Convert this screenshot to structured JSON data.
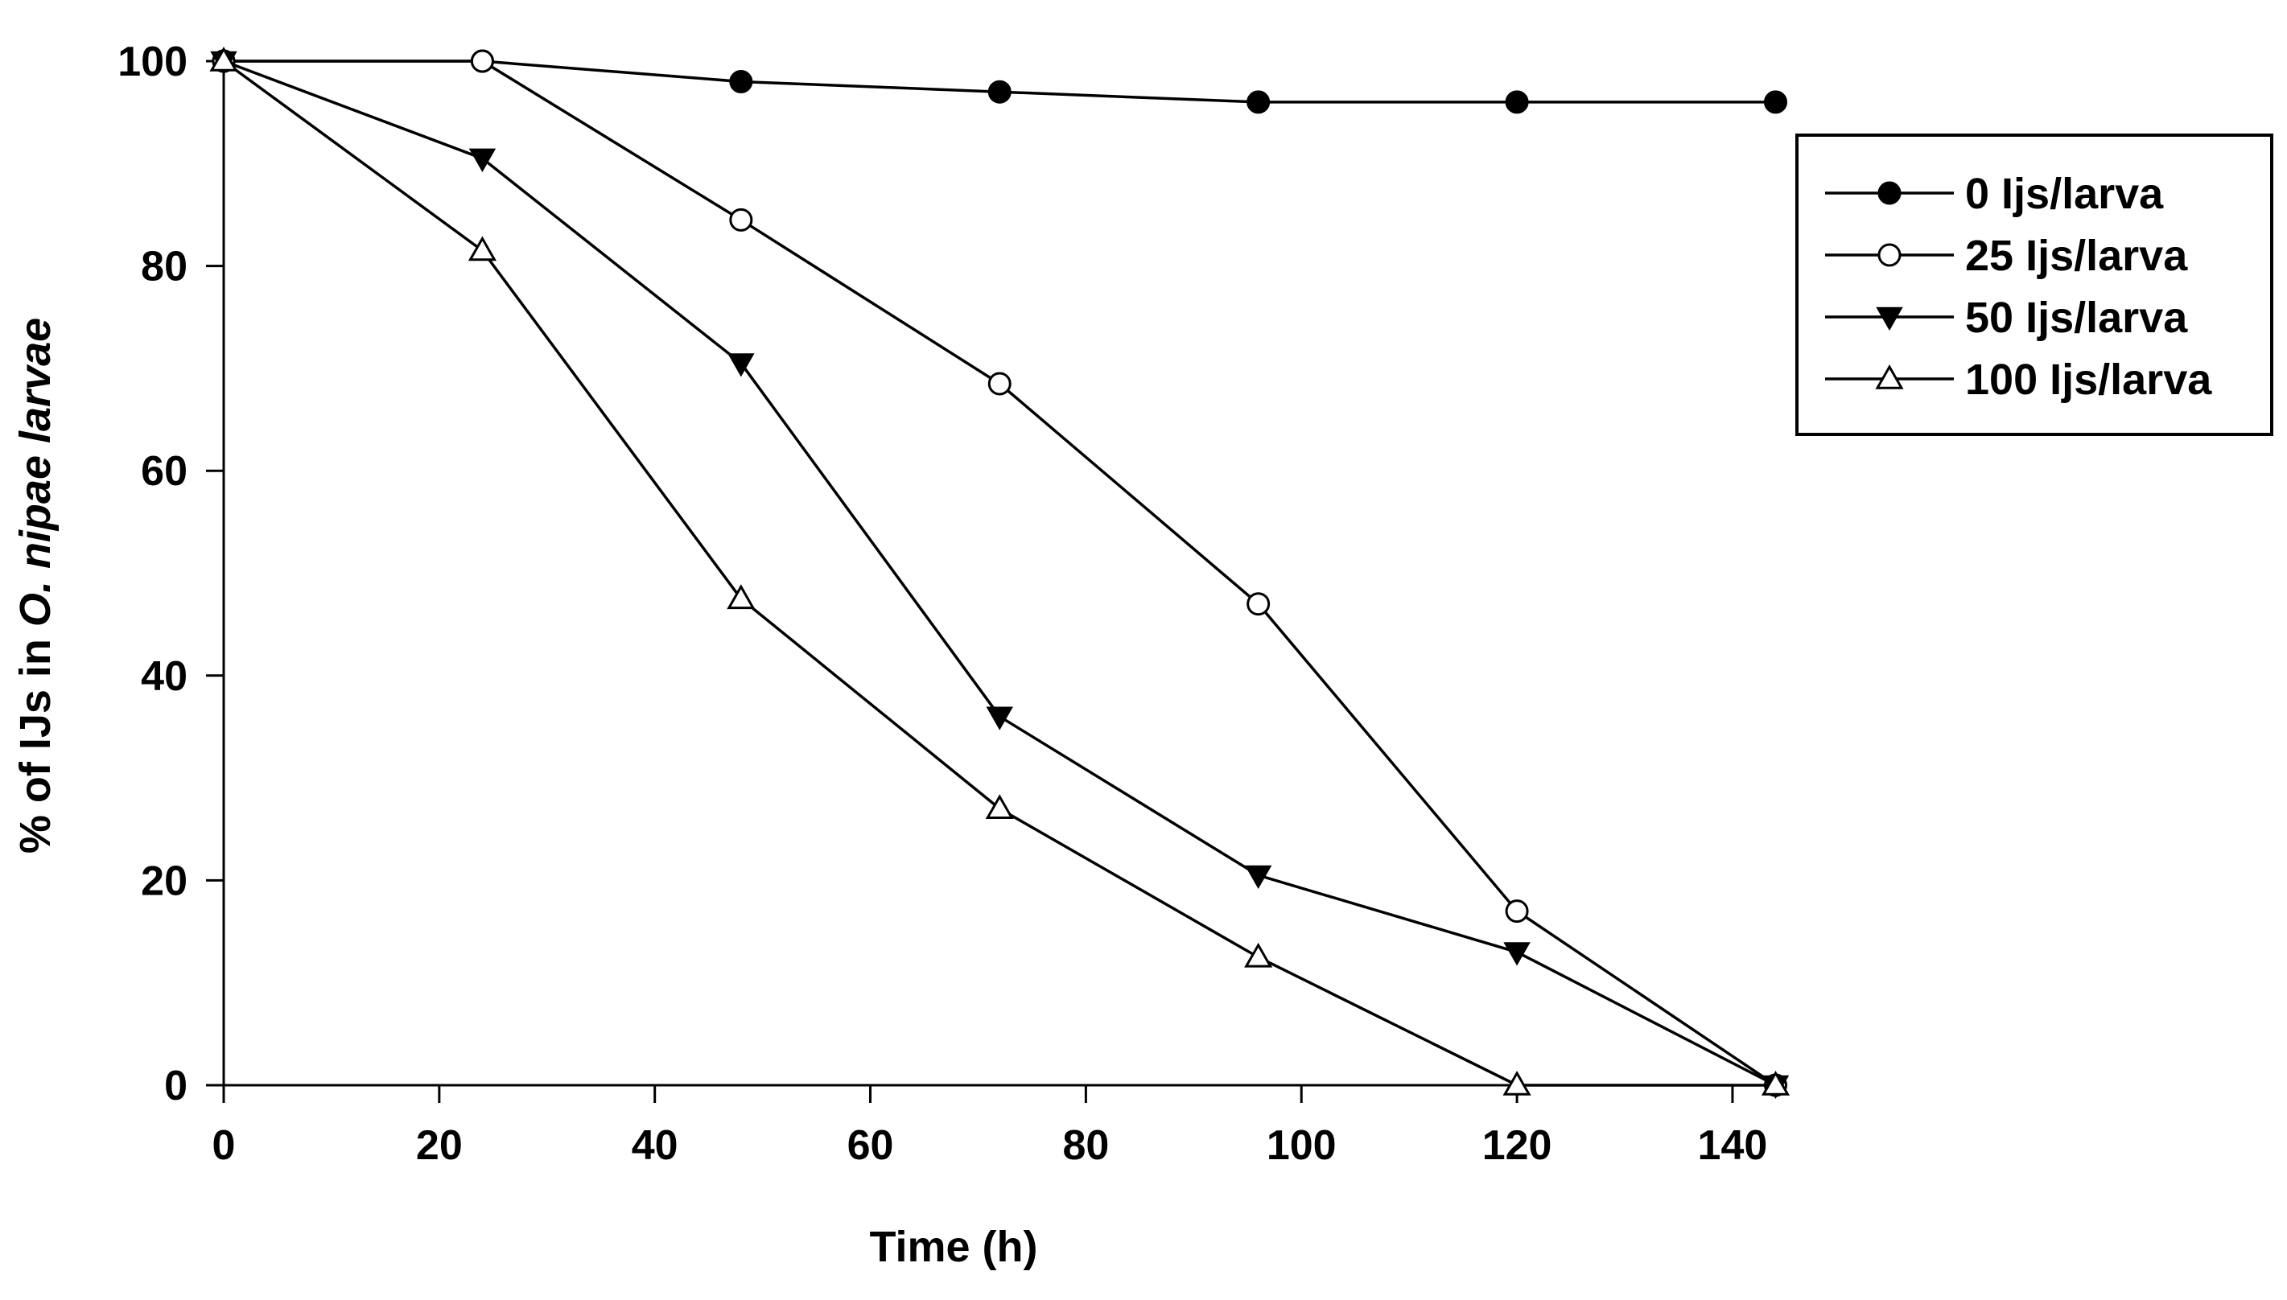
{
  "chart_data": {
    "type": "line",
    "title": "",
    "xlabel": "Time (h)",
    "ylabel_prefix": "% of IJs in ",
    "ylabel_italic": "O. nipae larvae",
    "xlim": [
      0,
      150
    ],
    "ylim": [
      0,
      100
    ],
    "x_ticks": [
      0,
      20,
      40,
      60,
      80,
      100,
      120,
      140
    ],
    "y_ticks": [
      0,
      20,
      40,
      60,
      80,
      100
    ],
    "grid": false,
    "legend_position": "top-right",
    "x": [
      0,
      24,
      48,
      72,
      96,
      120,
      144
    ],
    "series": [
      {
        "name": "0 Ijs/larva",
        "marker": "circle-filled",
        "values": [
          100,
          100,
          98,
          97,
          96,
          96,
          96
        ]
      },
      {
        "name": "25 Ijs/larva",
        "marker": "circle-open",
        "values": [
          100,
          100,
          84.5,
          68.5,
          47,
          17,
          0
        ]
      },
      {
        "name": "50 Ijs/larva",
        "marker": "triangle-down-filled",
        "values": [
          100,
          90.5,
          70.5,
          36,
          20.5,
          13,
          0
        ]
      },
      {
        "name": "100 Ijs/larva",
        "marker": "triangle-up-open",
        "values": [
          100,
          81.5,
          47.5,
          27,
          12.5,
          0,
          0
        ]
      }
    ]
  }
}
